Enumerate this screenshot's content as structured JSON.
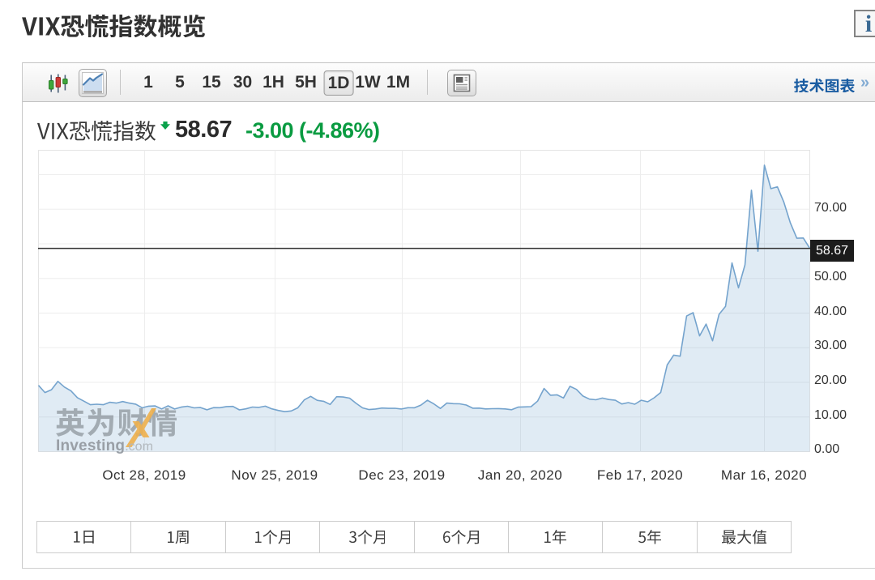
{
  "page": {
    "title": "VIX恐慌指数概览"
  },
  "header": {
    "info_icon_glyph": "i"
  },
  "toolbar": {
    "chart_types": [
      {
        "name": "candlestick"
      },
      {
        "name": "area",
        "selected": true
      }
    ],
    "timeframes": [
      {
        "label": "1"
      },
      {
        "label": "5"
      },
      {
        "label": "15"
      },
      {
        "label": "30"
      },
      {
        "label": "1H"
      },
      {
        "label": "5H"
      },
      {
        "label": "1D",
        "selected": true
      },
      {
        "label": "1W"
      },
      {
        "label": "1M"
      }
    ],
    "news_icon": "news-panel",
    "technical_chart_link": "技术图表",
    "technical_chart_chevron": "»"
  },
  "quote": {
    "name": "VIX恐慌指数",
    "direction": "down",
    "last": "58.67",
    "change": "-3.00",
    "change_percent": "(-4.86%)",
    "change_color": "#0a9b41"
  },
  "chart_data": {
    "type": "area",
    "title": "VIX恐慌指数",
    "timeframe": "1D",
    "x_tick_labels": [
      "Oct 28, 2019",
      "Nov 25, 2019",
      "Dec 23, 2019",
      "Jan 20, 2020",
      "Feb 17, 2020",
      "Mar 16, 2020"
    ],
    "y_tick_labels": [
      "70.00",
      "50.00",
      "40.00",
      "30.00",
      "20.00",
      "10.00",
      "0.00"
    ],
    "ylim": [
      0,
      87
    ],
    "y_grid_step": 10,
    "values": [
      19.12,
      17.04,
      17.86,
      20.28,
      18.64,
      17.57,
      15.58,
      14.57,
      13.54,
      13.68,
      13.53,
      14.25,
      14.02,
      14.46,
      14.01,
      13.71,
      12.65,
      13.11,
      13.2,
      12.33,
      13.22,
      12.3,
      12.83,
      13.1,
      12.62,
      12.73,
      12.07,
      12.69,
      12.68,
      13.0,
      13.05,
      12.05,
      12.34,
      12.86,
      12.78,
      13.13,
      12.34,
      11.87,
      11.54,
      11.75,
      12.62,
      14.91,
      15.96,
      14.8,
      14.52,
      13.62,
      15.86,
      15.77,
      15.44,
      13.94,
      12.63,
      12.14,
      12.29,
      12.58,
      12.5,
      12.51,
      12.29,
      12.67,
      12.65,
      13.43,
      14.82,
      13.78,
      12.47,
      14.02,
      13.85,
      13.79,
      13.45,
      12.54,
      12.56,
      12.32,
      12.39,
      12.42,
      12.32,
      12.1,
      12.85,
      12.91,
      12.98,
      14.56,
      18.23,
      16.28,
      16.39,
      15.49,
      18.84,
      17.97,
      16.05,
      15.15,
      14.96,
      15.47,
      15.04,
      14.83,
      13.74,
      14.15,
      13.68,
      14.83,
      14.38,
      15.56,
      17.08,
      25.03,
      27.85,
      27.56,
      39.16,
      40.11,
      33.42,
      36.82,
      31.99,
      39.62,
      41.94,
      54.46,
      47.3,
      53.9,
      75.47,
      57.83,
      82.69,
      75.91,
      76.45,
      72.0,
      66.04,
      61.59,
      61.67,
      58.67
    ],
    "current_price": 58.67,
    "current_price_label": "58.67",
    "grid": true,
    "legend": false,
    "line_color": "#74a3cd",
    "fill_color": "rgba(116,163,205,0.22)",
    "price_line_color": "#333333"
  },
  "watermark": {
    "cjk": "英为财情",
    "latin": "Investing",
    "tld": ".com"
  },
  "range_buttons": [
    {
      "label": "1日"
    },
    {
      "label": "1周"
    },
    {
      "label": "1个月"
    },
    {
      "label": "3个月"
    },
    {
      "label": "6个月"
    },
    {
      "label": "1年"
    },
    {
      "label": "5年"
    },
    {
      "label": "最大值"
    }
  ]
}
